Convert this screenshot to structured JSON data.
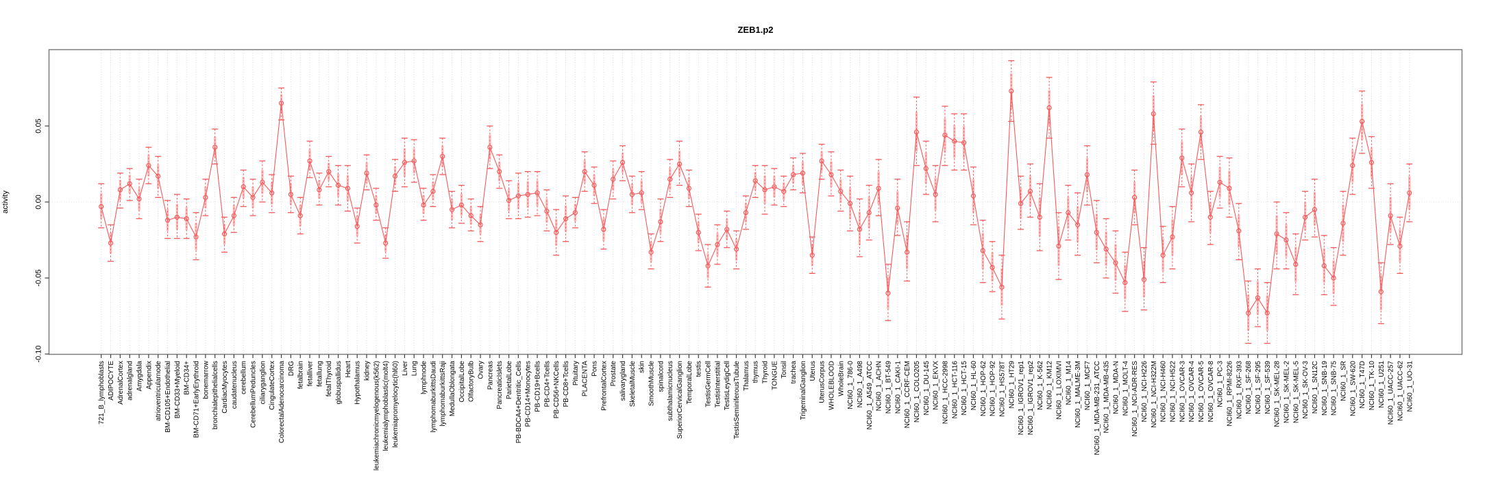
{
  "window": {
    "title": "ZEB1.p2 activity profile plot"
  },
  "chart_data": {
    "type": "line",
    "title": "ZEB1.p2",
    "xlabel": "",
    "ylabel": "activity",
    "ylim": [
      -0.1002,
      0.1002
    ],
    "y_ticks": [
      0.05,
      0.0,
      -0.05,
      -0.1
    ],
    "y_tick_labels": [
      "0.05",
      "0.00",
      "-0.05",
      "-0.10"
    ],
    "grid": "vertical dotted gridline per category, dotted horizontal line at zero",
    "legend_position": "none",
    "marker": "open-circle",
    "error_bars": true,
    "series_color": "#f5595b",
    "error_fill_color": "#f9a8a6",
    "gridline_color": "#d9d9d9",
    "axis_color": "#7d7d7d",
    "tick_color": "#404040",
    "label_color": "#000000",
    "categories": [
      "721_B_lymphoblasts",
      "ADIPOCYTE",
      "AdrenalCortex",
      "adrenalgland",
      "Amygdala",
      "Appendix",
      "atrioventricularnode",
      "BM-CD105+Endothelial",
      "BM-CD33+Myeloid",
      "BM-CD34+",
      "BM-CD71+EarlyErythroid",
      "bonemarrow",
      "bronchialepithelialcells",
      "CardiacMyocytes",
      "caudatenucleus",
      "cerebellum",
      "CerebellumPeduncles",
      "ciliaryganglion",
      "CingulateCortex",
      "ColorectalAdenocarcinoma",
      "DRG",
      "fetalbrain",
      "fetalliver",
      "fetallung",
      "fetalThyroid",
      "globuspallidus",
      "Heart",
      "Hypothalamus",
      "kidney",
      "leukemiachronicmyelogenous(k562)",
      "leukemialymphoblastic(molt4)",
      "leukemiapromyelocytic(hl60)",
      "Liver",
      "Lung",
      "lymphnode",
      "lymphomaburkittsDaudi",
      "lymphomaburkittsRaji",
      "MedullaOblongata",
      "OccipitalLobe",
      "OlfactoryBulb",
      "Ovary",
      "Pancreas",
      "PancreaticIslets",
      "ParietalLobe",
      "PB-BDCA4+Dentritic_Cells",
      "PB-CD14+Monocytes",
      "PB-CD19+Bcells",
      "PB-CD4+Tcells",
      "PB-CD56+NKCells",
      "PB-CD8+Tcells",
      "Pituitary",
      "PLACENTA",
      "Pons",
      "PrefrontalCortex",
      "Prostate",
      "salivarygland",
      "SkeletalMuscle",
      "skin",
      "SmoothMuscle",
      "spinalcord",
      "subthalamicnucleus",
      "SuperiorCervicalGanglion",
      "TemporalLobe",
      "testis",
      "TestisGermCell",
      "TestisInterstitial",
      "TestisLeydigCell",
      "TestisSeminiferousTubule",
      "Thalamus",
      "thymus",
      "Thyroid",
      "TONGUE",
      "Tonsil",
      "trachea",
      "TrigeminalGanglion",
      "Uterus",
      "UterusCorpus",
      "WHOLEBLOOD",
      "WholeBrain",
      "NCI60_1_786-0",
      "NCI60_1_A498",
      "NCI60_1_A549_ATCC",
      "NCI60_1_ACHN",
      "NCI60_1_BT-549",
      "NCI60_1_CAKI-1",
      "NCI60_1_CCRF-CEM",
      "NCI60_1_COLO205",
      "NCI60_1_DU-145",
      "NCI60_1_EKVX",
      "NCI60_1_HCC-2998",
      "NCI60_1_HCT-116",
      "NCI60_1_HCT-15",
      "NCI60_1_HL-60",
      "NCI60_1_HOP-62",
      "NCI60_1_HOP-92",
      "NCI60_1_HS578T",
      "NCI60_1_HT29",
      "NCI60_1_IGROV1_rep1",
      "NCI60_1_IGROV1_rep2",
      "NCI60_1_K-562",
      "NCI60_1_KM12",
      "NCI60_1_LOXIMVI",
      "NCI60_1_M14",
      "NCI60_1_MALME-3M",
      "NCI60_1_MCF7",
      "NCI60_1_MDA-MB-231_ATCC",
      "NCI60_1_MDA-MB-435",
      "NCI60_1_MDA-N",
      "NCI60_1_MOLT-4",
      "NCI60_1_NCI-ADR-RES",
      "NCI60_1_NCI-H226",
      "NCI60_1_NCI-H322M",
      "NCI60_1_NCI-H460",
      "NCI60_1_NCI-H522",
      "NCI60_1_OVCAR-3",
      "NCI60_1_OVCAR-4",
      "NCI60_1_OVCAR-5",
      "NCI60_1_OVCAR-8",
      "NCI60_1_PC-3",
      "NCI60_1_RPMI-8226",
      "NCI60_1_RXF-393",
      "NCI60_1_SF-268",
      "NCI60_1_SF-295",
      "NCI60_1_SF-539",
      "NCI60_1_SK-MEL-28",
      "NCI60_1_SK-MEL-2",
      "NCI60_1_SK-MEL-5",
      "NCI60_1_SK-OV-3",
      "NCI60_1_SN12C",
      "NCI60_1_SNB-19",
      "NCI60_1_SNB-75",
      "NCI60_1_SR",
      "NCI60_1_SW-620",
      "NCI60_1_T47D",
      "NCI60_1_TK-10",
      "NCI60_1_U251",
      "NCI60_1_UACC-257",
      "NCI60_1_UACC-62",
      "NCI60_1_UO-31"
    ],
    "series": [
      {
        "name": "activity",
        "values": [
          -0.003,
          -0.027,
          0.008,
          0.012,
          0.002,
          0.024,
          0.017,
          -0.012,
          -0.01,
          -0.011,
          -0.023,
          0.003,
          0.036,
          -0.021,
          -0.009,
          0.01,
          0.003,
          0.013,
          0.006,
          0.065,
          0.005,
          -0.009,
          0.027,
          0.008,
          0.02,
          0.011,
          0.009,
          -0.016,
          0.019,
          -0.002,
          -0.027,
          0.017,
          0.026,
          0.027,
          -0.002,
          0.007,
          0.03,
          -0.005,
          -0.002,
          -0.009,
          -0.015,
          0.036,
          0.02,
          0.001,
          0.004,
          0.005,
          0.006,
          -0.006,
          -0.02,
          -0.011,
          -0.007,
          0.02,
          0.011,
          -0.018,
          0.015,
          0.026,
          0.005,
          0.006,
          -0.033,
          -0.013,
          0.015,
          0.025,
          0.009,
          -0.02,
          -0.042,
          -0.028,
          -0.018,
          -0.031,
          -0.007,
          0.014,
          0.008,
          0.01,
          0.007,
          0.018,
          0.019,
          -0.035,
          0.027,
          0.018,
          0.007,
          -0.001,
          -0.018,
          -0.007,
          0.009,
          -0.06,
          -0.004,
          -0.033,
          0.046,
          0.022,
          0.005,
          0.044,
          0.04,
          0.039,
          0.004,
          -0.032,
          -0.043,
          -0.056,
          0.073,
          -0.001,
          0.007,
          -0.01,
          0.062,
          -0.029,
          -0.007,
          -0.015,
          0.018,
          -0.02,
          -0.031,
          -0.04,
          -0.053,
          0.003,
          -0.051,
          0.058,
          -0.035,
          -0.023,
          0.029,
          0.006,
          0.046,
          -0.01,
          0.013,
          0.009,
          -0.019,
          -0.073,
          -0.063,
          -0.073,
          -0.021,
          -0.025,
          -0.041,
          -0.01,
          -0.005,
          -0.042,
          -0.05,
          -0.014,
          0.024,
          0.053,
          0.026,
          -0.059,
          -0.009,
          -0.029,
          0.006
        ],
        "lower": [
          -0.017,
          -0.039,
          -0.004,
          0.001,
          -0.011,
          0.012,
          0.003,
          -0.024,
          -0.024,
          -0.024,
          -0.038,
          -0.009,
          0.025,
          -0.033,
          -0.02,
          -0.003,
          -0.009,
          0.0,
          -0.007,
          0.054,
          -0.007,
          -0.021,
          0.016,
          -0.002,
          0.01,
          -0.002,
          -0.006,
          -0.027,
          0.008,
          -0.012,
          -0.037,
          0.007,
          0.01,
          0.013,
          -0.012,
          -0.003,
          0.018,
          -0.017,
          -0.014,
          -0.019,
          -0.026,
          0.022,
          0.009,
          -0.011,
          -0.011,
          -0.01,
          -0.009,
          -0.019,
          -0.035,
          -0.026,
          -0.017,
          0.007,
          -0.001,
          -0.031,
          0.002,
          0.014,
          -0.007,
          -0.005,
          -0.044,
          -0.026,
          0.003,
          0.011,
          -0.003,
          -0.032,
          -0.056,
          -0.041,
          -0.03,
          -0.044,
          -0.018,
          0.003,
          -0.008,
          -0.002,
          -0.003,
          0.008,
          0.006,
          -0.047,
          0.015,
          0.004,
          -0.006,
          -0.019,
          -0.036,
          -0.025,
          -0.009,
          -0.078,
          -0.022,
          -0.052,
          0.024,
          0.005,
          -0.013,
          0.024,
          0.021,
          0.021,
          -0.015,
          -0.053,
          -0.059,
          -0.077,
          0.053,
          -0.018,
          -0.01,
          -0.032,
          0.042,
          -0.051,
          -0.025,
          -0.035,
          -0.002,
          -0.04,
          -0.05,
          -0.06,
          -0.072,
          -0.015,
          -0.071,
          0.038,
          -0.053,
          -0.044,
          0.01,
          -0.013,
          0.028,
          -0.028,
          -0.004,
          -0.01,
          -0.038,
          -0.093,
          -0.082,
          -0.093,
          -0.044,
          -0.044,
          -0.061,
          -0.025,
          -0.023,
          -0.061,
          -0.068,
          -0.035,
          0.005,
          0.032,
          0.009,
          -0.08,
          -0.028,
          -0.047,
          -0.013
        ],
        "upper": [
          0.012,
          -0.015,
          0.019,
          0.022,
          0.015,
          0.036,
          0.03,
          0.001,
          0.005,
          0.002,
          -0.007,
          0.015,
          0.048,
          -0.01,
          0.003,
          0.021,
          0.015,
          0.027,
          0.018,
          0.075,
          0.017,
          0.003,
          0.04,
          0.019,
          0.03,
          0.024,
          0.024,
          -0.004,
          0.031,
          0.009,
          -0.017,
          0.028,
          0.042,
          0.041,
          0.009,
          0.018,
          0.042,
          0.007,
          0.011,
          0.002,
          -0.003,
          0.05,
          0.031,
          0.014,
          0.019,
          0.02,
          0.02,
          0.008,
          -0.005,
          0.004,
          0.003,
          0.033,
          0.023,
          -0.005,
          0.027,
          0.037,
          0.017,
          0.02,
          -0.021,
          0.002,
          0.028,
          0.04,
          0.021,
          -0.008,
          -0.028,
          -0.015,
          -0.006,
          -0.019,
          0.004,
          0.024,
          0.024,
          0.022,
          0.017,
          0.029,
          0.032,
          -0.023,
          0.038,
          0.033,
          0.021,
          0.017,
          0.002,
          0.011,
          0.028,
          -0.041,
          0.015,
          -0.013,
          0.069,
          0.04,
          0.024,
          0.063,
          0.058,
          0.058,
          0.023,
          -0.012,
          -0.026,
          -0.035,
          0.093,
          0.017,
          0.025,
          0.012,
          0.082,
          -0.007,
          0.011,
          0.006,
          0.037,
          0.001,
          -0.011,
          -0.019,
          -0.033,
          0.021,
          -0.03,
          0.079,
          -0.016,
          -0.003,
          0.048,
          0.025,
          0.064,
          0.007,
          0.03,
          0.029,
          -0.001,
          -0.052,
          -0.044,
          -0.053,
          0.0,
          -0.007,
          -0.021,
          0.007,
          0.015,
          -0.022,
          -0.03,
          0.007,
          0.042,
          0.073,
          0.043,
          -0.04,
          0.012,
          -0.01,
          0.025
        ]
      }
    ]
  }
}
